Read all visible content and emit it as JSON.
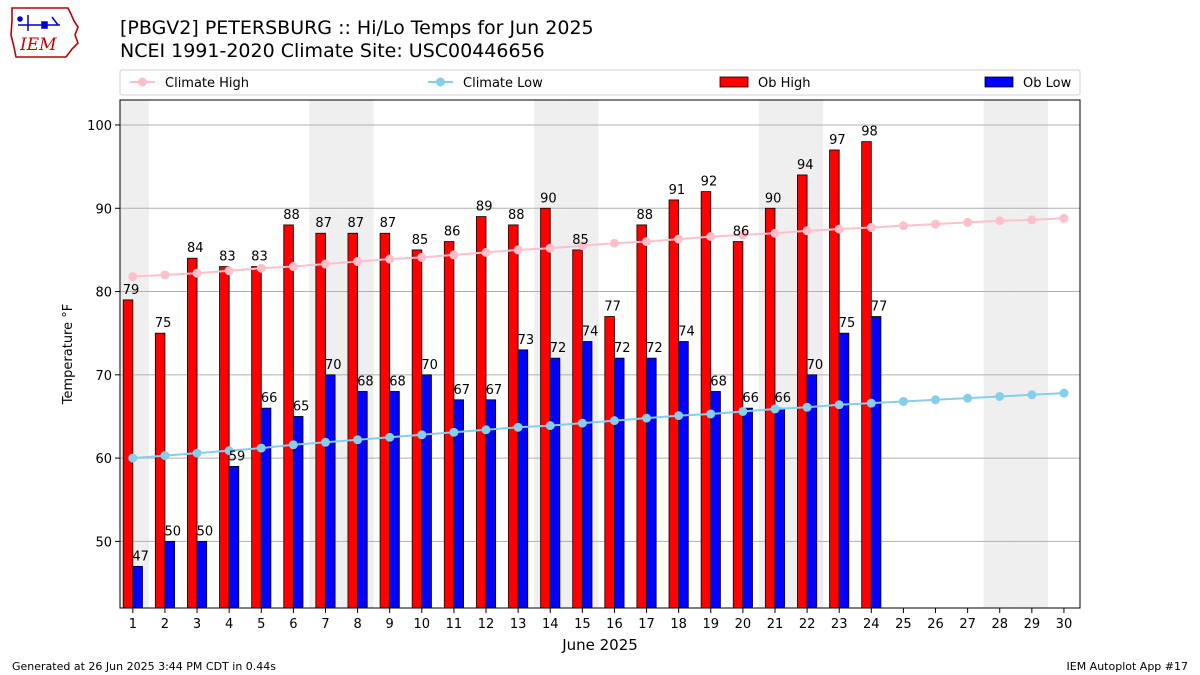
{
  "header": {
    "title_line1": "[PBGV2] PETERSBURG :: Hi/Lo Temps for Jun 2025",
    "title_line2": "NCEI 1991-2020 Climate Site: USC00446656",
    "logo_text": "IEM"
  },
  "footer": {
    "generated": "Generated at 26 Jun 2025 3:44 PM CDT in 0.44s",
    "app": "IEM Autoplot App #17"
  },
  "colors": {
    "ob_high": "#ff0000",
    "ob_low": "#0000ff",
    "climate_high": "#ffc0cb",
    "climate_low": "#87ceeb",
    "weekend_shade": "#efefef",
    "grid": "#b0b0b0"
  },
  "chart_data": {
    "type": "bar",
    "xlabel": "June 2025",
    "ylabel": "Temperature °F",
    "ylim": [
      42,
      103
    ],
    "yticks": [
      50,
      60,
      70,
      80,
      90,
      100
    ],
    "grid": "horizontal",
    "legend_position": "top",
    "days": [
      1,
      2,
      3,
      4,
      5,
      6,
      7,
      8,
      9,
      10,
      11,
      12,
      13,
      14,
      15,
      16,
      17,
      18,
      19,
      20,
      21,
      22,
      23,
      24,
      25,
      26,
      27,
      28,
      29,
      30
    ],
    "weekend_days": [
      1,
      7,
      8,
      14,
      15,
      21,
      22,
      28,
      29
    ],
    "legend": [
      {
        "name": "Climate High",
        "kind": "line",
        "color": "#ffc0cb"
      },
      {
        "name": "Climate Low",
        "kind": "line",
        "color": "#87ceeb"
      },
      {
        "name": "Ob High",
        "kind": "bar",
        "color": "#ff0000"
      },
      {
        "name": "Ob Low",
        "kind": "bar",
        "color": "#0000ff"
      }
    ],
    "series": [
      {
        "name": "Ob High",
        "kind": "bar",
        "values": [
          79,
          75,
          84,
          83,
          83,
          88,
          87,
          87,
          87,
          85,
          86,
          89,
          88,
          90,
          85,
          77,
          88,
          91,
          92,
          86,
          90,
          94,
          97,
          98
        ]
      },
      {
        "name": "Ob Low",
        "kind": "bar",
        "values": [
          47,
          50,
          50,
          59,
          66,
          65,
          70,
          68,
          68,
          70,
          67,
          67,
          73,
          72,
          74,
          72,
          72,
          74,
          68,
          66,
          66,
          70,
          75,
          77
        ]
      },
      {
        "name": "Climate High",
        "kind": "line",
        "values": [
          81.8,
          82.0,
          82.2,
          82.5,
          82.8,
          83.0,
          83.3,
          83.6,
          83.9,
          84.1,
          84.4,
          84.7,
          85.0,
          85.2,
          85.5,
          85.8,
          86.0,
          86.3,
          86.6,
          86.8,
          87.0,
          87.3,
          87.5,
          87.7,
          87.9,
          88.1,
          88.3,
          88.5,
          88.6,
          88.8
        ]
      },
      {
        "name": "Climate Low",
        "kind": "line",
        "values": [
          60.0,
          60.3,
          60.6,
          60.9,
          61.2,
          61.6,
          61.9,
          62.2,
          62.5,
          62.8,
          63.1,
          63.4,
          63.7,
          63.9,
          64.2,
          64.5,
          64.8,
          65.1,
          65.3,
          65.6,
          65.9,
          66.1,
          66.4,
          66.6,
          66.8,
          67.0,
          67.2,
          67.4,
          67.6,
          67.8
        ]
      }
    ]
  }
}
